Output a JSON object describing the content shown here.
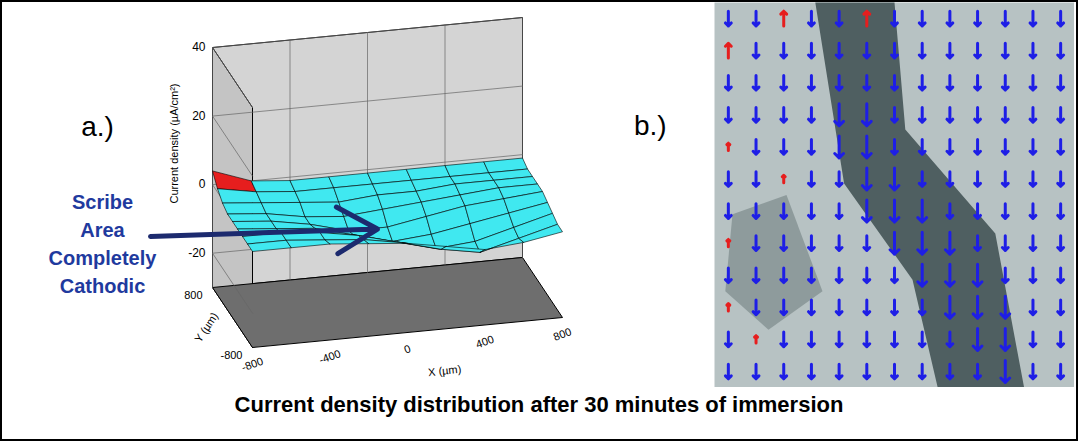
{
  "title": "Current density distribution after 30 minutes of immersion",
  "chart_data": [
    {
      "type": "surface",
      "label": "a.)",
      "xlabel": "X (µm)",
      "ylabel": "Y (µm)",
      "zlabel": "Current density (µA/cm²)",
      "x": [
        -800,
        -600,
        -400,
        -200,
        0,
        200,
        400,
        600,
        800
      ],
      "y": [
        -800,
        -600,
        -400,
        -200,
        0,
        200,
        400,
        600,
        800
      ],
      "z": [
        [
          -2,
          -2,
          -2,
          -3,
          -4,
          -6,
          -8,
          -7,
          -5
        ],
        [
          -2,
          -2,
          -3,
          -4,
          -6,
          -9,
          -11,
          -8,
          -5
        ],
        [
          -2,
          -2,
          -3,
          -5,
          -8,
          -11,
          -10,
          -7,
          -4
        ],
        [
          -2,
          -3,
          -4,
          -7,
          -10,
          -9,
          -7,
          -5,
          -3
        ],
        [
          -2,
          -3,
          -5,
          -8,
          -8,
          -6,
          -4,
          -3,
          -2
        ],
        [
          -2,
          -3,
          -5,
          -6,
          -5,
          -4,
          -3,
          -2,
          -2
        ],
        [
          -1,
          -2,
          -3,
          -4,
          -3,
          -3,
          -2,
          -2,
          -2
        ],
        [
          1,
          -1,
          -2,
          -2,
          -2,
          -2,
          -2,
          -2,
          -2
        ],
        [
          4,
          0,
          -1,
          -1,
          -1,
          -1,
          -1,
          -1,
          -1
        ]
      ],
      "xlim": [
        -800,
        800
      ],
      "ylim": [
        -800,
        800
      ],
      "zlim": [
        -30,
        40
      ],
      "xticks": [
        -800,
        -400,
        0,
        400,
        800
      ],
      "yticks": [
        -800,
        800
      ],
      "zticks": [
        -20,
        0,
        20,
        40
      ],
      "colors": [
        "#40e8f0",
        "#e61e1e"
      ],
      "annotation": "Scribe Area Completely Cathodic"
    },
    {
      "type": "vector_map",
      "label": "b.)",
      "values": [
        [
          -2,
          -2,
          2,
          -2,
          -2,
          2,
          -2,
          -2,
          -2,
          -2,
          -2,
          -2,
          -2
        ],
        [
          2,
          -2,
          -2,
          -2,
          -2,
          -2,
          -2,
          -2,
          -2,
          -2,
          -2,
          -2,
          -2
        ],
        [
          -2,
          -2,
          -2,
          -2,
          -2,
          -2,
          -2,
          -2,
          -2,
          -2,
          -2,
          -2,
          -2
        ],
        [
          -2,
          -2,
          -2,
          -2,
          -3,
          -3,
          -2,
          -2,
          -2,
          -2,
          -2,
          -2,
          -2
        ],
        [
          1,
          -2,
          -2,
          -2,
          -3,
          -3,
          -2,
          -2,
          -2,
          -2,
          -2,
          -2,
          -2
        ],
        [
          -2,
          -2,
          1,
          -2,
          -2,
          -3,
          -3,
          -2,
          -2,
          -2,
          -2,
          -2,
          -2
        ],
        [
          -2,
          -2,
          -2,
          -2,
          -2,
          -3,
          -3,
          -3,
          -2,
          -2,
          -2,
          -2,
          -2
        ],
        [
          1,
          -2,
          -2,
          -2,
          -2,
          -2,
          -3,
          -3,
          -3,
          -2,
          -2,
          -2,
          -2
        ],
        [
          -2,
          -2,
          -2,
          -2,
          -2,
          -2,
          -2,
          -3,
          -3,
          -3,
          -2,
          -2,
          -2
        ],
        [
          1,
          -2,
          -2,
          -2,
          -2,
          -2,
          -2,
          -2,
          -3,
          -3,
          -3,
          -2,
          -2
        ],
        [
          -2,
          1,
          -2,
          -2,
          -2,
          -2,
          -2,
          -2,
          -2,
          -3,
          -3,
          -2,
          -2
        ],
        [
          -2,
          -2,
          -2,
          -2,
          -2,
          -2,
          -2,
          -2,
          -2,
          -2,
          -3,
          -2,
          -2
        ]
      ],
      "colors": [
        "#1e1ee6",
        "#e61e1e"
      ]
    }
  ]
}
